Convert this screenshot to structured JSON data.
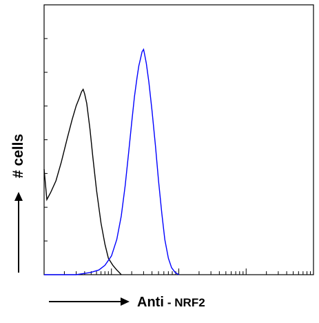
{
  "chart_data": {
    "type": "line",
    "title": "",
    "xlabel": "Anti",
    "xlabel_suffix": "- NRF2",
    "ylabel": "# cells",
    "x_scale": "log",
    "grid": false,
    "legend": "none",
    "series": [
      {
        "color": "#000000",
        "points": [
          [
            1,
            0.45
          ],
          [
            1.1,
            0.32
          ],
          [
            1.25,
            0.35
          ],
          [
            1.5,
            0.4
          ],
          [
            1.8,
            0.48
          ],
          [
            2.2,
            0.58
          ],
          [
            2.6,
            0.66
          ],
          [
            3.0,
            0.72
          ],
          [
            3.3,
            0.75
          ],
          [
            3.6,
            0.78
          ],
          [
            3.8,
            0.79
          ],
          [
            4.0,
            0.77
          ],
          [
            4.3,
            0.73
          ],
          [
            4.8,
            0.62
          ],
          [
            5.3,
            0.5
          ],
          [
            6.0,
            0.36
          ],
          [
            7.0,
            0.22
          ],
          [
            8.0,
            0.13
          ],
          [
            9.0,
            0.07
          ],
          [
            10.5,
            0.04
          ],
          [
            12,
            0.02
          ],
          [
            13,
            0.01
          ],
          [
            14,
            0.0
          ]
        ]
      },
      {
        "color": "#0000ff",
        "points": [
          [
            1,
            0.0
          ],
          [
            3,
            0.0
          ],
          [
            5,
            0.01
          ],
          [
            6.5,
            0.02
          ],
          [
            8,
            0.04
          ],
          [
            10,
            0.08
          ],
          [
            12,
            0.15
          ],
          [
            14,
            0.25
          ],
          [
            16,
            0.38
          ],
          [
            18,
            0.52
          ],
          [
            20,
            0.65
          ],
          [
            22,
            0.76
          ],
          [
            24,
            0.84
          ],
          [
            25.5,
            0.89
          ],
          [
            27,
            0.92
          ],
          [
            28.5,
            0.95
          ],
          [
            30,
            0.96
          ],
          [
            31,
            0.94
          ],
          [
            33,
            0.9
          ],
          [
            36,
            0.82
          ],
          [
            40,
            0.7
          ],
          [
            45,
            0.55
          ],
          [
            50,
            0.4
          ],
          [
            56,
            0.26
          ],
          [
            62,
            0.15
          ],
          [
            70,
            0.07
          ],
          [
            78,
            0.03
          ],
          [
            88,
            0.01
          ],
          [
            100,
            0.0
          ]
        ]
      }
    ],
    "xlim": [
      1,
      10000
    ],
    "ylim": [
      0,
      1.15
    ]
  }
}
